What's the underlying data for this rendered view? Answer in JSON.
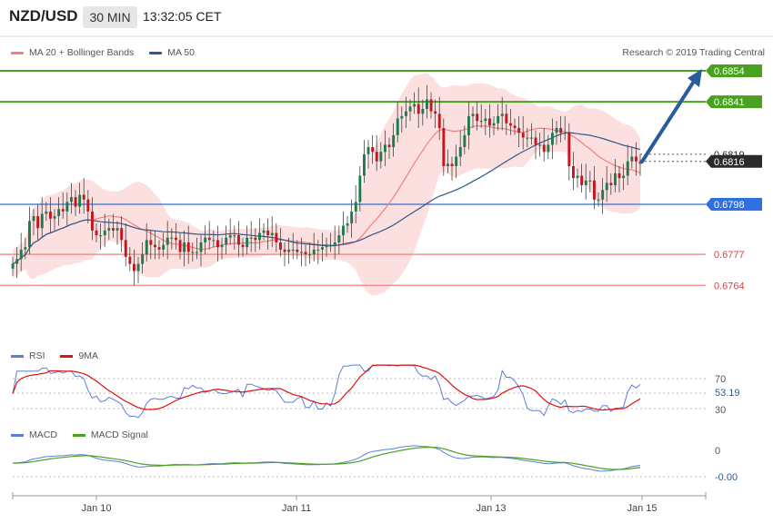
{
  "header": {
    "pair": "NZD/USD",
    "timeframe": "30 MIN",
    "time": "13:32:05 CET"
  },
  "legend": {
    "ma20": "MA 20 + Bollinger Bands",
    "ma50": "MA 50",
    "ma20_color": "#f08080",
    "ma50_color": "#2f5b8c"
  },
  "credit": "Research © 2019 Trading Central",
  "rsi_legend": {
    "rsi": "RSI",
    "ma": "9MA",
    "rsi_color": "#5b7fd6",
    "ma_color": "#e01010"
  },
  "macd_legend": {
    "macd": "MACD",
    "signal": "MACD Signal",
    "macd_color": "#5b7fd6",
    "signal_color": "#4aa020"
  },
  "price_levels": [
    {
      "value": 0.6854,
      "label": "0.6854",
      "kind": "target",
      "color": "#4aa020"
    },
    {
      "value": 0.6841,
      "label": "0.6841",
      "kind": "target",
      "color": "#4aa020"
    },
    {
      "value": 0.6819,
      "label": "0.6819",
      "kind": "dotted",
      "color": "#2f2f2f"
    },
    {
      "value": 0.6816,
      "label": "0.6816",
      "kind": "current",
      "color": "#2a2a2a"
    },
    {
      "value": 0.6798,
      "label": "0.6798",
      "kind": "pivot",
      "color": "#2f6fe0"
    },
    {
      "value": 0.6777,
      "label": "0.6777",
      "kind": "support",
      "color": "#f08080"
    },
    {
      "value": 0.6764,
      "label": "0.6764",
      "kind": "support",
      "color": "#f08080"
    }
  ],
  "rsi_panel": {
    "levels": [
      "70",
      "30"
    ],
    "current": "53.19"
  },
  "macd_panel": {
    "levels": [
      "0"
    ],
    "current": "-0.00"
  },
  "x_axis": {
    "labels": [
      "Jan 10",
      "Jan 11",
      "Jan 13",
      "Jan 15"
    ]
  },
  "chart_data": {
    "type": "candlestick",
    "ylim": [
      0.675,
      0.6862
    ],
    "close": [
      0.6773,
      0.6775,
      0.6779,
      0.678,
      0.6791,
      0.6793,
      0.6788,
      0.6794,
      0.6795,
      0.6792,
      0.6793,
      0.6796,
      0.6795,
      0.6799,
      0.6801,
      0.6797,
      0.6802,
      0.68,
      0.6795,
      0.6787,
      0.6785,
      0.6785,
      0.6787,
      0.6788,
      0.6787,
      0.6788,
      0.6783,
      0.6776,
      0.6773,
      0.677,
      0.6773,
      0.6777,
      0.6783,
      0.6781,
      0.678,
      0.6779,
      0.6781,
      0.6784,
      0.6784,
      0.6783,
      0.6778,
      0.6782,
      0.6778,
      0.6778,
      0.6778,
      0.6782,
      0.6784,
      0.6783,
      0.6783,
      0.678,
      0.6781,
      0.6784,
      0.6785,
      0.6785,
      0.6781,
      0.678,
      0.6784,
      0.6784,
      0.6783,
      0.6786,
      0.6787,
      0.6785,
      0.6786,
      0.6782,
      0.6779,
      0.6778,
      0.6779,
      0.6779,
      0.6778,
      0.6778,
      0.6777,
      0.6777,
      0.6779,
      0.6779,
      0.678,
      0.6781,
      0.6781,
      0.6782,
      0.6785,
      0.6789,
      0.679,
      0.6795,
      0.6799,
      0.681,
      0.6819,
      0.6822,
      0.682,
      0.6816,
      0.682,
      0.6823,
      0.6822,
      0.6827,
      0.6834,
      0.6835,
      0.6837,
      0.6839,
      0.684,
      0.6836,
      0.6838,
      0.6842,
      0.6837,
      0.6836,
      0.683,
      0.6814,
      0.6815,
      0.6814,
      0.6818,
      0.6822,
      0.6827,
      0.6835,
      0.6836,
      0.6833,
      0.6833,
      0.6834,
      0.6831,
      0.6832,
      0.6835,
      0.6836,
      0.6832,
      0.6831,
      0.683,
      0.6828,
      0.6826,
      0.6826,
      0.6826,
      0.6823,
      0.6823,
      0.682,
      0.6823,
      0.6828,
      0.683,
      0.6828,
      0.6828,
      0.6814,
      0.6809,
      0.681,
      0.6806,
      0.6808,
      0.6808,
      0.68,
      0.68,
      0.6804,
      0.6807,
      0.6806,
      0.6811,
      0.6809,
      0.681,
      0.6816,
      0.6818,
      0.6816,
      0.6815
    ]
  }
}
